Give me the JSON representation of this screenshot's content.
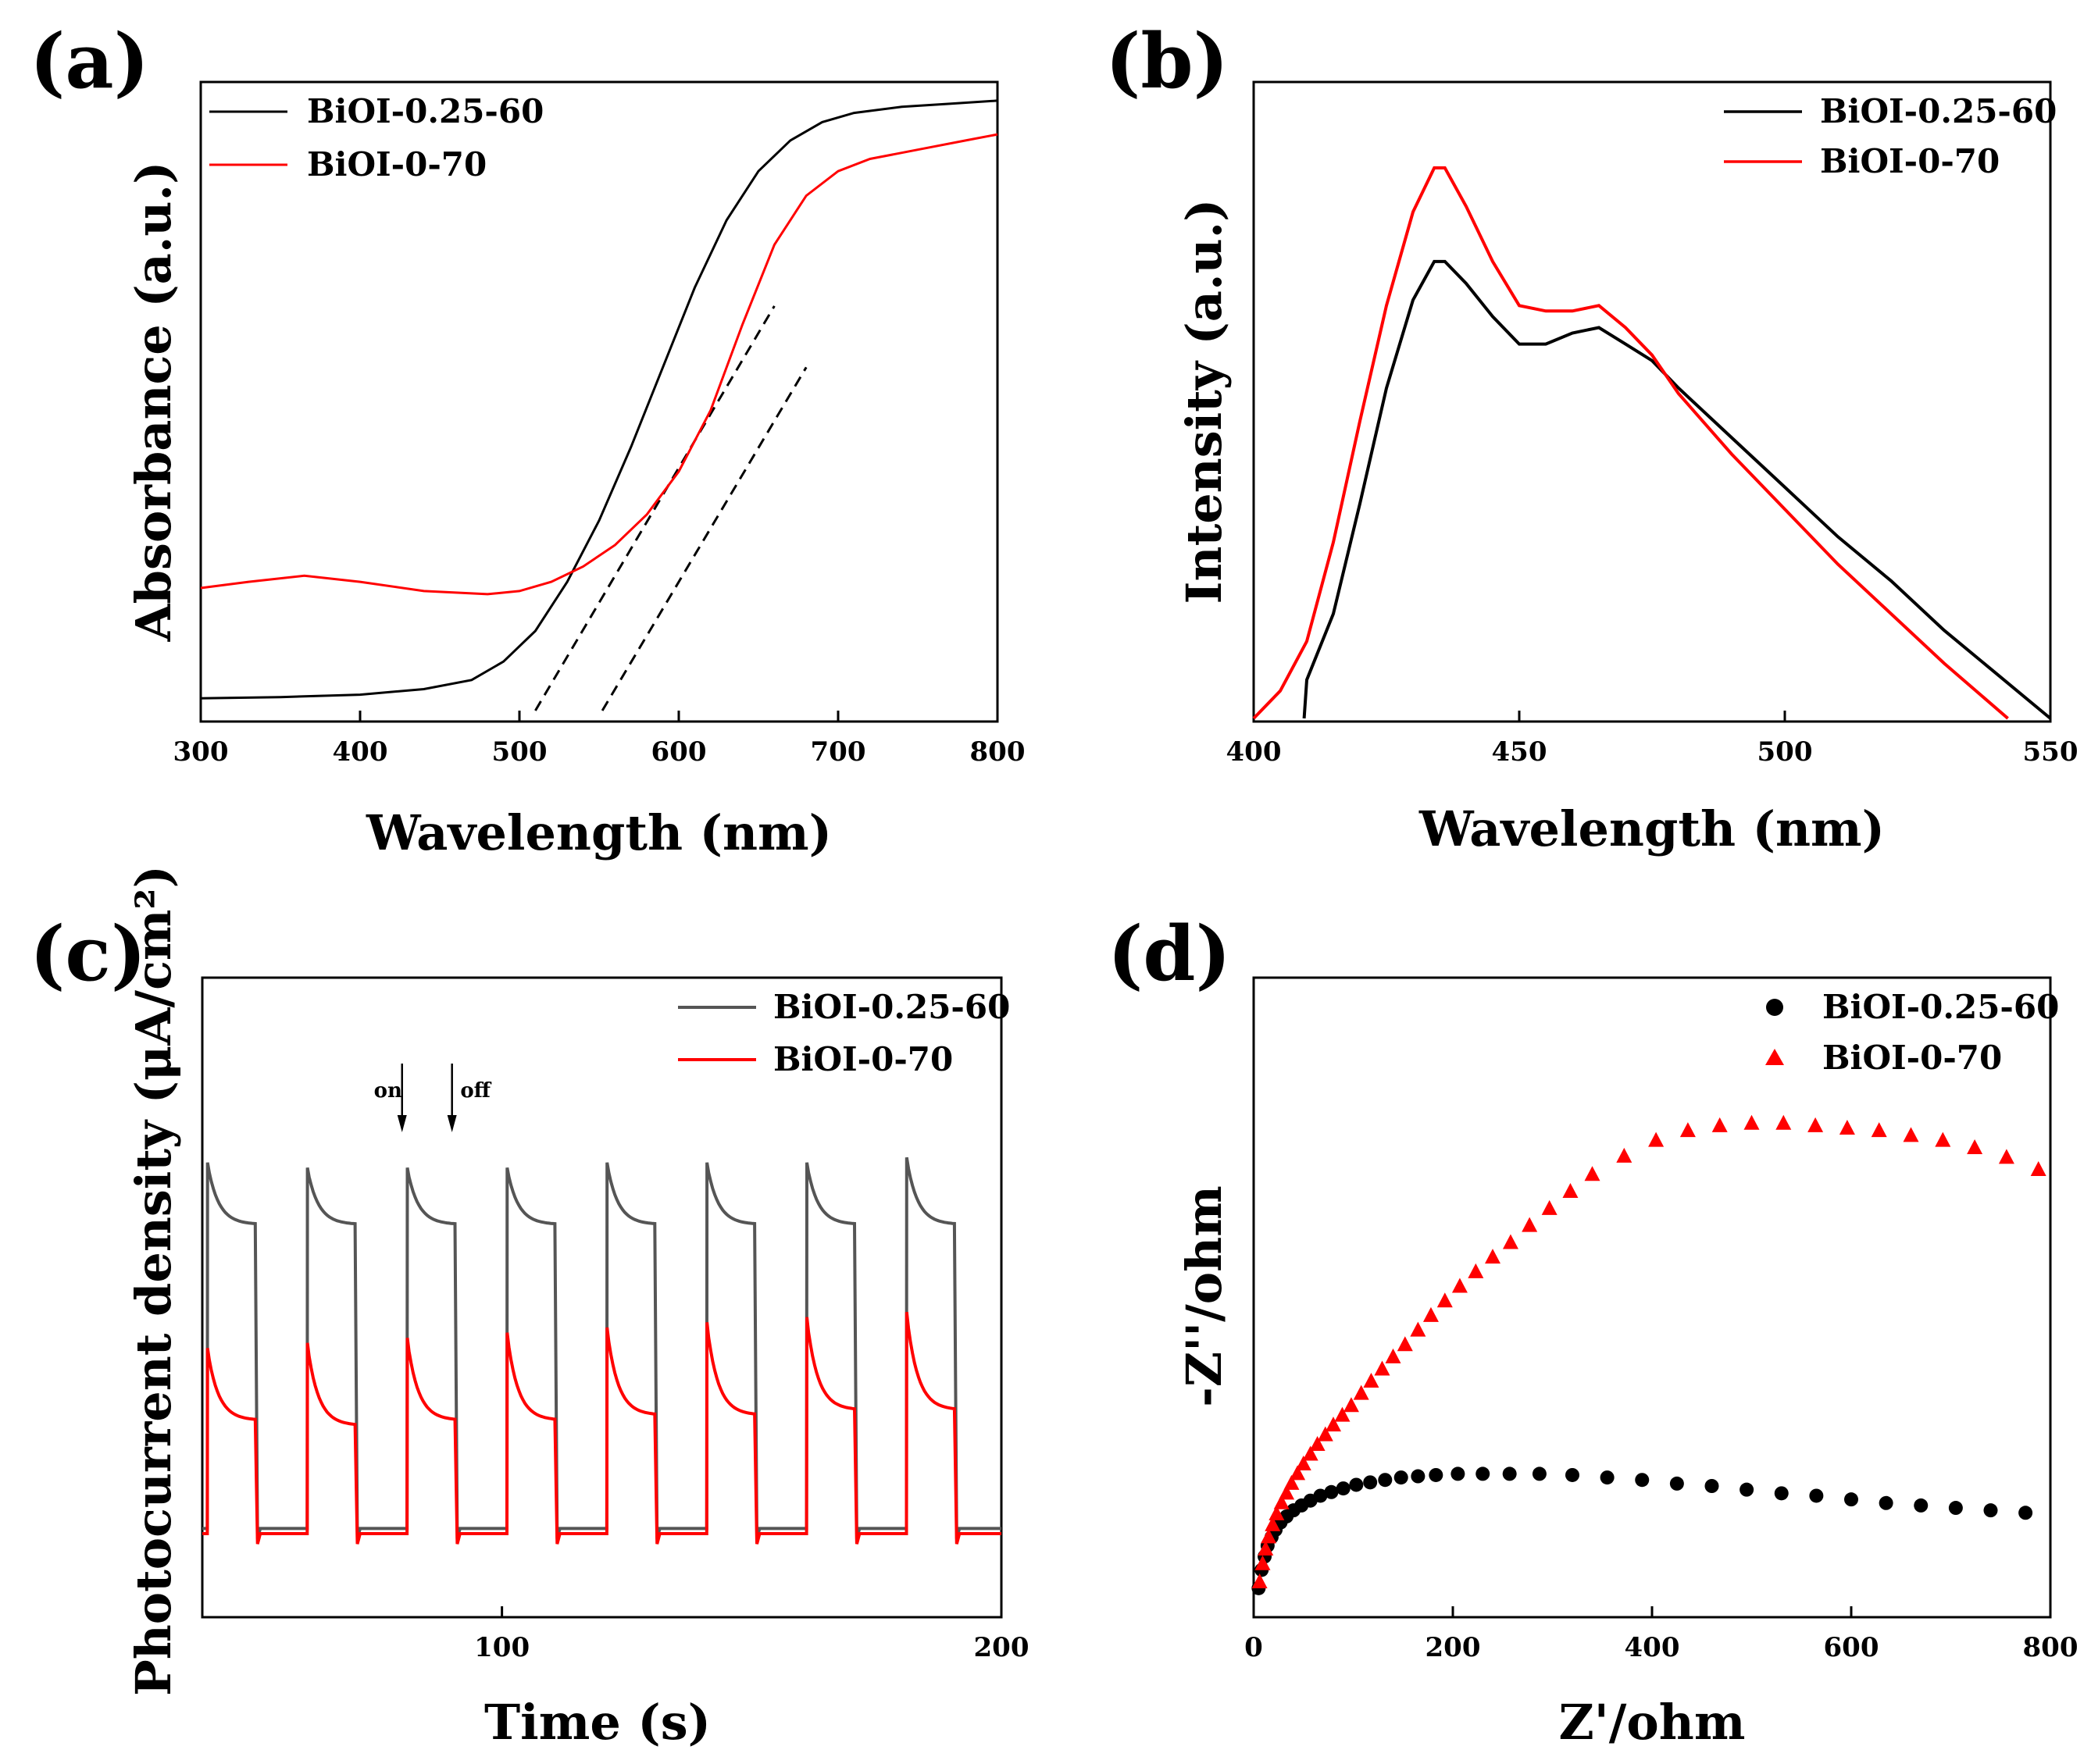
{
  "colors": {
    "black": "#000000",
    "red": "#ff0000",
    "gray": "#555555"
  },
  "chart_data": [
    {
      "panel": "(a)",
      "type": "line",
      "xlabel": "Wavelength (nm)",
      "ylabel": "Absorbance (a.u.)",
      "xlim": [
        300,
        800
      ],
      "ylim": [
        0,
        1.0
      ],
      "xticks": [
        300,
        400,
        500,
        600,
        700,
        800
      ],
      "show_yticks": false,
      "legend": "top-left",
      "series": [
        {
          "name": "BiOI-0.25-60",
          "color": "#000000",
          "x": [
            300,
            350,
            400,
            440,
            470,
            490,
            510,
            530,
            550,
            570,
            590,
            610,
            630,
            650,
            670,
            690,
            710,
            740,
            770,
            800
          ],
          "y": [
            0.02,
            0.022,
            0.026,
            0.035,
            0.05,
            0.08,
            0.13,
            0.21,
            0.31,
            0.43,
            0.56,
            0.69,
            0.8,
            0.88,
            0.93,
            0.96,
            0.975,
            0.985,
            0.99,
            0.995
          ]
        },
        {
          "name": "BiOI-0-70",
          "color": "#ff0000",
          "x": [
            300,
            330,
            365,
            400,
            440,
            480,
            500,
            520,
            540,
            560,
            580,
            600,
            620,
            640,
            660,
            680,
            700,
            720,
            750,
            780,
            800
          ],
          "y": [
            0.2,
            0.21,
            0.22,
            0.21,
            0.195,
            0.19,
            0.195,
            0.21,
            0.235,
            0.27,
            0.32,
            0.39,
            0.49,
            0.63,
            0.76,
            0.84,
            0.88,
            0.9,
            0.915,
            0.93,
            0.94
          ]
        }
      ],
      "tangents": [
        {
          "x": [
            510,
            660
          ],
          "y": [
            0.0,
            0.66
          ]
        },
        {
          "x": [
            552,
            680
          ],
          "y": [
            0.0,
            0.56
          ]
        }
      ]
    },
    {
      "panel": "(b)",
      "type": "line",
      "xlabel": "Wavelength (nm)",
      "ylabel": "Intensity (a.u.)",
      "xlim": [
        400,
        550
      ],
      "ylim": [
        0,
        1.0
      ],
      "xticks": [
        400,
        450,
        500,
        550
      ],
      "show_yticks": false,
      "legend": "top-right",
      "series": [
        {
          "name": "BiOI-0.25-60",
          "color": "#000000",
          "x": [
            409.5,
            410,
            415,
            420,
            425,
            430,
            434,
            436,
            440,
            445,
            450,
            455,
            460,
            465,
            470,
            475,
            480,
            490,
            500,
            510,
            520,
            530,
            540,
            550
          ],
          "y": [
            0.0,
            0.07,
            0.19,
            0.39,
            0.6,
            0.76,
            0.83,
            0.83,
            0.79,
            0.73,
            0.68,
            0.68,
            0.7,
            0.71,
            0.68,
            0.65,
            0.6,
            0.51,
            0.42,
            0.33,
            0.25,
            0.16,
            0.08,
            0.0
          ]
        },
        {
          "name": "BiOI-0-70",
          "color": "#ff0000",
          "x": [
            400,
            405,
            410,
            415,
            420,
            425,
            430,
            434,
            436,
            440,
            445,
            450,
            455,
            460,
            465,
            470,
            475,
            480,
            490,
            500,
            510,
            520,
            530,
            542
          ],
          "y": [
            0.0,
            0.05,
            0.14,
            0.32,
            0.54,
            0.75,
            0.92,
            1.0,
            1.0,
            0.93,
            0.83,
            0.75,
            0.74,
            0.74,
            0.75,
            0.71,
            0.66,
            0.59,
            0.48,
            0.38,
            0.28,
            0.19,
            0.1,
            0.0
          ]
        }
      ]
    },
    {
      "panel": "(c)",
      "type": "line",
      "xlabel": "Time (s)",
      "ylabel": "Photocurrent density (μA/cm²)",
      "xlim": [
        40,
        200
      ],
      "ylim": [
        0,
        1.0
      ],
      "xticks": [
        100,
        200
      ],
      "show_yticks": false,
      "legend": "top-right",
      "annotations": [
        {
          "text": "on",
          "x": 80
        },
        {
          "text": "off",
          "x": 90
        }
      ],
      "series": [
        {
          "name": "BiOI-0.25-60",
          "color": "#555555",
          "base": 0.11,
          "on_time": [
            41,
            61,
            81,
            101,
            121,
            141,
            161,
            181
          ],
          "off_time": [
            51,
            71,
            91,
            111,
            131,
            151,
            171,
            191
          ],
          "peak": [
            0.82,
            0.81,
            0.81,
            0.81,
            0.82,
            0.82,
            0.82,
            0.83
          ],
          "plateau": [
            0.7,
            0.7,
            0.7,
            0.7,
            0.7,
            0.7,
            0.7,
            0.7
          ]
        },
        {
          "name": "BiOI-0-70",
          "color": "#ff0000",
          "base": 0.1,
          "on_time": [
            41,
            61,
            81,
            101,
            121,
            141,
            161,
            181
          ],
          "off_time": [
            51,
            71,
            91,
            111,
            131,
            151,
            171,
            191
          ],
          "peak": [
            0.46,
            0.47,
            0.48,
            0.49,
            0.5,
            0.51,
            0.52,
            0.53
          ],
          "plateau": [
            0.32,
            0.31,
            0.32,
            0.32,
            0.33,
            0.33,
            0.34,
            0.34
          ]
        }
      ]
    },
    {
      "panel": "(d)",
      "type": "scatter",
      "xlabel": "Z'/ohm",
      "ylabel": "-Z''/ohm",
      "xlim": [
        0,
        800
      ],
      "ylim": [
        0,
        520
      ],
      "xticks": [
        0,
        200,
        400,
        600,
        800
      ],
      "show_yticks": false,
      "legend": "top-right",
      "series": [
        {
          "name": "BiOI-0.25-60",
          "color": "#000000",
          "marker": "circle",
          "x": [
            5,
            8,
            11,
            14,
            18,
            22,
            27,
            33,
            40,
            48,
            57,
            67,
            78,
            90,
            103,
            117,
            132,
            148,
            165,
            183,
            205,
            230,
            257,
            287,
            320,
            355,
            390,
            425,
            460,
            495,
            530,
            565,
            600,
            635,
            670,
            705,
            740,
            775
          ],
          "y": [
            20,
            35,
            46,
            55,
            62,
            68,
            74,
            79,
            84,
            88,
            92,
            96,
            99,
            102,
            105,
            107,
            109,
            111,
            112,
            113,
            114,
            114,
            114,
            114,
            113,
            111,
            109,
            106,
            104,
            101,
            98,
            96,
            93,
            90,
            88,
            86,
            84,
            82
          ]
        },
        {
          "name": "BiOI-0-70",
          "color": "#ff0000",
          "marker": "triangle",
          "x": [
            6,
            9,
            12,
            15,
            19,
            23,
            28,
            33,
            38,
            44,
            50,
            57,
            64,
            72,
            80,
            89,
            98,
            108,
            118,
            129,
            140,
            152,
            165,
            178,
            192,
            207,
            223,
            240,
            258,
            277,
            297,
            318,
            340,
            372,
            404,
            436,
            468,
            500,
            532,
            564,
            596,
            628,
            660,
            692,
            724,
            756,
            788
          ],
          "y": [
            25,
            40,
            52,
            62,
            72,
            81,
            90,
            98,
            106,
            114,
            122,
            130,
            138,
            146,
            154,
            162,
            170,
            180,
            190,
            200,
            210,
            220,
            232,
            244,
            256,
            268,
            280,
            292,
            304,
            318,
            332,
            346,
            360,
            375,
            388,
            396,
            400,
            402,
            402,
            400,
            398,
            396,
            392,
            388,
            382,
            374,
            364
          ]
        }
      ]
    }
  ]
}
